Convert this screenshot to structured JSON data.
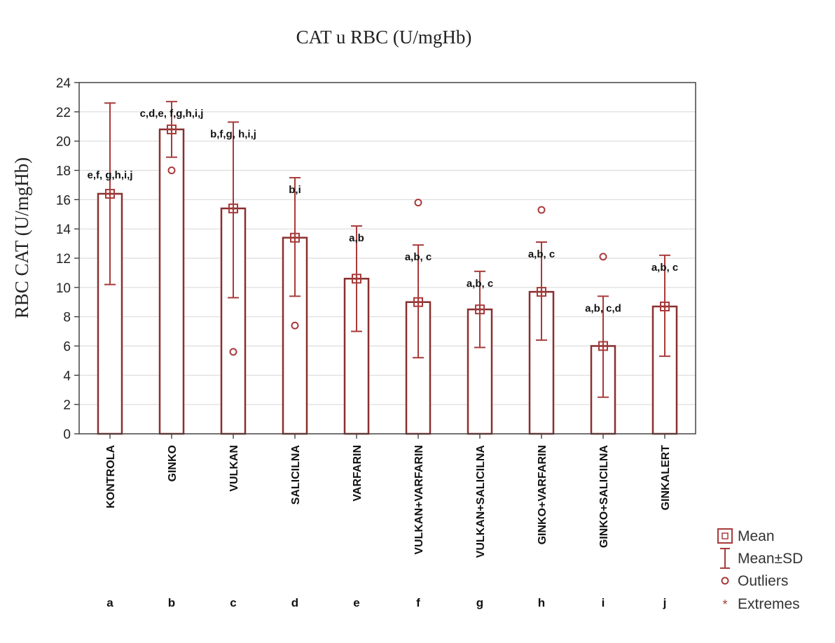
{
  "chart_data": {
    "type": "bar",
    "title": "CAT u RBC (U/mgHb)",
    "ylabel": "RBC CAT (U/mgHb)",
    "xlabel": "",
    "ylim": [
      0,
      24
    ],
    "yticks": [
      0,
      2,
      4,
      6,
      8,
      10,
      12,
      14,
      16,
      18,
      20,
      22,
      24
    ],
    "grid": true,
    "categories": [
      "KONTROLA",
      "GINKO",
      "VULKAN",
      "SALICILNA",
      "VARFARIN",
      "VULKAN+VARFARIN",
      "VULKAN+SALICILNA",
      "GINKO+VARFARIN",
      "GINKO+SALICILNA",
      "GINKALERT"
    ],
    "group_letters": [
      "a",
      "b",
      "c",
      "d",
      "e",
      "f",
      "g",
      "h",
      "i",
      "j"
    ],
    "means": [
      16.4,
      20.8,
      15.4,
      13.4,
      10.6,
      9.0,
      8.5,
      9.7,
      6.0,
      8.7
    ],
    "sd_upper": [
      22.6,
      22.7,
      21.3,
      17.5,
      14.2,
      12.9,
      11.1,
      13.1,
      9.4,
      12.2
    ],
    "sd_lower": [
      10.2,
      18.9,
      9.3,
      9.4,
      7.0,
      5.2,
      5.9,
      6.4,
      2.5,
      5.3
    ],
    "outliers": [
      {
        "category": "GINKO",
        "value": 18.0
      },
      {
        "category": "VULKAN",
        "value": 5.6
      },
      {
        "category": "SALICILNA",
        "value": 7.4
      },
      {
        "category": "VULKAN+VARFARIN",
        "value": 15.8
      },
      {
        "category": "GINKO+VARFARIN",
        "value": 15.3
      },
      {
        "category": "GINKO+SALICILNA",
        "value": 12.1
      }
    ],
    "annotations": [
      "e,f, g,h,i,j",
      "c,d,e, f,g,h,i,j",
      "b,f,g, h,i,j",
      "b,i",
      "a,b",
      "a,b, c",
      "a,b, c",
      "a,b, c",
      "a,b, c,d",
      "a,b, c"
    ],
    "legend": {
      "position": "bottom-right",
      "items": [
        "Mean",
        "Mean±SD",
        "Outliers",
        "Extremes"
      ]
    },
    "colors": {
      "marker": "#a83a3a",
      "bar_outline": "#8a2f2f",
      "grid": "#dcdcdc",
      "axis": "#333333"
    }
  }
}
